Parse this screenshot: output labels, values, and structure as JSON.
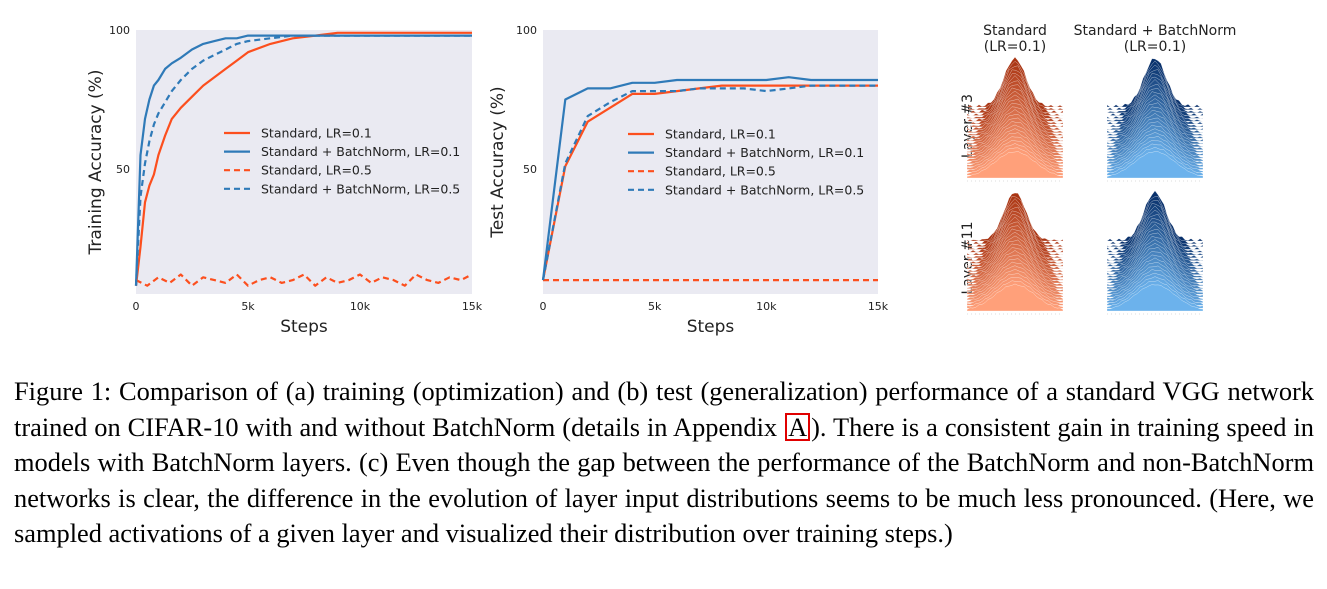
{
  "figure": {
    "chart_data": [
      {
        "type": "line",
        "xlabel": "Steps",
        "ylabel": "Training Accuracy (%)",
        "xlim": [
          0,
          15000
        ],
        "ylim": [
          5,
          100
        ],
        "xticks": [
          "0",
          "5k",
          "10k",
          "15k"
        ],
        "yticks": [
          "50",
          "100"
        ],
        "grid": false,
        "legend_position": "center",
        "series": [
          {
            "name": "Standard, LR=0.1",
            "color": "#fc4f1e",
            "dash": "solid",
            "x": [
              0,
              200,
              400,
              600,
              800,
              1000,
              1300,
              1600,
              2000,
              2500,
              3000,
              3500,
              4000,
              4500,
              5000,
              6000,
              7000,
              8000,
              9000,
              10000,
              11000,
              12000,
              13000,
              14000,
              15000
            ],
            "y": [
              8,
              22,
              38,
              44,
              48,
              55,
              62,
              68,
              72,
              76,
              80,
              83,
              86,
              89,
              92,
              95,
              97,
              98,
              99,
              99,
              99,
              99,
              99,
              99,
              99
            ]
          },
          {
            "name": "Standard + BatchNorm, LR=0.1",
            "color": "#2f7ab8",
            "dash": "solid",
            "x": [
              0,
              200,
              400,
              600,
              800,
              1000,
              1300,
              1600,
              2000,
              2500,
              3000,
              3500,
              4000,
              4500,
              5000,
              6000,
              7000,
              8000,
              9000,
              10000,
              11000,
              12000,
              13000,
              14000,
              15000
            ],
            "y": [
              8,
              55,
              68,
              75,
              80,
              82,
              86,
              88,
              90,
              93,
              95,
              96,
              97,
              97,
              98,
              98,
              98,
              98,
              98,
              98,
              98,
              98,
              98,
              98,
              98
            ]
          },
          {
            "name": "Standard, LR=0.5",
            "color": "#fc4f1e",
            "dash": "dashed",
            "x": [
              0,
              500,
              1000,
              1500,
              2000,
              2500,
              3000,
              3500,
              4000,
              4500,
              5000,
              5500,
              6000,
              6500,
              7000,
              7500,
              8000,
              8500,
              9000,
              9500,
              10000,
              10500,
              11000,
              11500,
              12000,
              12500,
              13000,
              13500,
              14000,
              14500,
              15000
            ],
            "y": [
              10,
              8,
              11,
              9,
              12,
              8,
              11,
              10,
              9,
              12,
              8,
              10,
              11,
              9,
              10,
              12,
              8,
              11,
              9,
              10,
              12,
              9,
              11,
              10,
              8,
              12,
              10,
              9,
              11,
              10,
              12
            ]
          },
          {
            "name": "Standard + BatchNorm, LR=0.5",
            "color": "#2f7ab8",
            "dash": "dashed",
            "x": [
              0,
              200,
              400,
              600,
              800,
              1000,
              1300,
              1600,
              2000,
              2500,
              3000,
              3500,
              4000,
              4500,
              5000,
              6000,
              7000,
              8000,
              9000,
              10000,
              11000,
              12000,
              13000,
              14000,
              15000
            ],
            "y": [
              8,
              40,
              52,
              60,
              66,
              70,
              74,
              78,
              82,
              86,
              89,
              91,
              93,
              95,
              96,
              97,
              98,
              98,
              98,
              98,
              98,
              98,
              98,
              98,
              98
            ]
          }
        ]
      },
      {
        "type": "line",
        "xlabel": "Steps",
        "ylabel": "Test Accuracy (%)",
        "xlim": [
          0,
          15000
        ],
        "ylim": [
          5,
          100
        ],
        "xticks": [
          "0",
          "5k",
          "10k",
          "15k"
        ],
        "yticks": [
          "50",
          "100"
        ],
        "grid": false,
        "legend_position": "center-right",
        "series": [
          {
            "name": "Standard, LR=0.1",
            "color": "#fc4f1e",
            "dash": "solid",
            "x": [
              0,
              1000,
              2000,
              3000,
              4000,
              5000,
              6000,
              7000,
              8000,
              9000,
              10000,
              11000,
              12000,
              13000,
              14000,
              15000
            ],
            "y": [
              10,
              51,
              67,
              72,
              77,
              77,
              78,
              79,
              80,
              80,
              80,
              80,
              80,
              80,
              80,
              80
            ]
          },
          {
            "name": "Standard + BatchNorm, LR=0.1",
            "color": "#2f7ab8",
            "dash": "solid",
            "x": [
              0,
              1000,
              2000,
              3000,
              4000,
              5000,
              6000,
              7000,
              8000,
              9000,
              10000,
              11000,
              12000,
              13000,
              14000,
              15000
            ],
            "y": [
              10,
              75,
              79,
              79,
              81,
              81,
              82,
              82,
              82,
              82,
              82,
              83,
              82,
              82,
              82,
              82
            ]
          },
          {
            "name": "Standard, LR=0.5",
            "color": "#fc4f1e",
            "dash": "dashed",
            "x": [
              0,
              1000,
              2000,
              3000,
              4000,
              5000,
              6000,
              7000,
              8000,
              9000,
              10000,
              11000,
              12000,
              13000,
              14000,
              15000
            ],
            "y": [
              10,
              10,
              10,
              10,
              10,
              10,
              10,
              10,
              10,
              10,
              10,
              10,
              10,
              10,
              10,
              10
            ]
          },
          {
            "name": "Standard + BatchNorm, LR=0.5",
            "color": "#2f7ab8",
            "dash": "dashed",
            "x": [
              0,
              1000,
              2000,
              3000,
              4000,
              5000,
              6000,
              7000,
              8000,
              9000,
              10000,
              11000,
              12000,
              13000,
              14000,
              15000
            ],
            "y": [
              10,
              52,
              69,
              74,
              78,
              78,
              78,
              79,
              79,
              79,
              78,
              79,
              80,
              80,
              80,
              80
            ]
          }
        ]
      }
    ],
    "distributions": {
      "columns": [
        {
          "title": "Standard",
          "subtitle": "(LR=0.1)",
          "dark_color": "#a93412",
          "light_color": "#ffa07a"
        },
        {
          "title": "Standard + BatchNorm",
          "subtitle": "(LR=0.1)",
          "dark_color": "#08306b",
          "light_color": "#6cb2ec"
        }
      ],
      "rows": [
        "Layer #3",
        "Layer #11"
      ]
    },
    "colors": {
      "plot_background": "#eaeaf2",
      "standard": "#fc4f1e",
      "batchnorm": "#2f7ab8"
    }
  },
  "caption": {
    "main": "Figure 1: Comparison of (a) training (optimization) and (b) test (generalization) performance of a standard VGG network trained on CIFAR-10 with and without BatchNorm (details in Appendix ",
    "ref": "A",
    "rest": "). There is a consistent gain in training speed in models with BatchNorm layers. (c) Even though the gap between the performance of the BatchNorm and non-BatchNorm networks is clear, the difference in the evolution of layer input distributions seems to be much less pronounced. (Here, we sampled activations of a given layer and visualized their distribution over training steps.)"
  }
}
